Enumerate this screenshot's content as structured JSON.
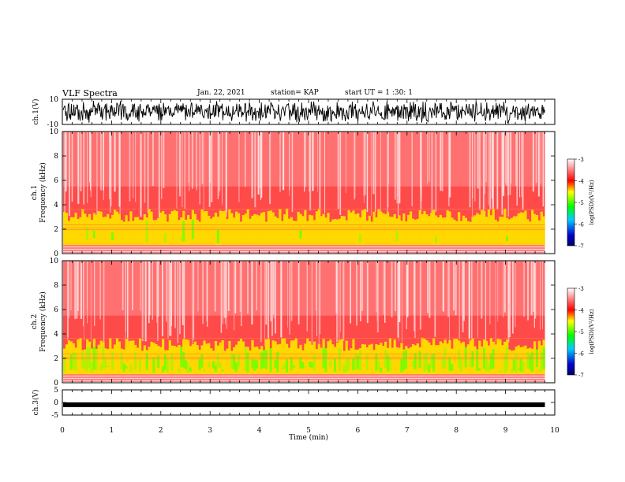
{
  "header": {
    "title": "VLF Spectra",
    "date": "Jan. 22, 2021",
    "station": "station= KAP",
    "start": "start  UT =   1 :30: 1"
  },
  "chart_data": [
    {
      "type": "line",
      "panel": "ch1-waveform",
      "ylabel": "ch.1(V)",
      "ylim": [
        -10,
        10
      ],
      "yticks": [
        "10",
        "-10"
      ],
      "xlim": [
        0,
        10
      ],
      "data_end_min": 9.8,
      "color": "#000000"
    },
    {
      "type": "heatmap",
      "panel": "ch1-spectrogram",
      "ylabel": "ch.1  Frequency (kHz)",
      "ylim": [
        0,
        10
      ],
      "yticks": [
        "0",
        "2",
        "4",
        "6",
        "8",
        "10"
      ],
      "xlim": [
        0,
        10
      ],
      "data_end_min": 9.8,
      "colorbar": {
        "label": "log(PSD)(V²/Hz)",
        "range": [
          -7,
          -3
        ],
        "ticks": [
          "-3",
          "-4",
          "-5",
          "-6",
          "-7"
        ]
      }
    },
    {
      "type": "heatmap",
      "panel": "ch2-spectrogram",
      "ylabel": "ch.2  Frequency (kHz)",
      "ylim": [
        0,
        10
      ],
      "yticks": [
        "0",
        "2",
        "4",
        "6",
        "8",
        "10"
      ],
      "xlim": [
        0,
        10
      ],
      "data_end_min": 9.8,
      "colorbar": {
        "label": "log(PSD)(V²/Hz)",
        "range": [
          -7,
          -3
        ],
        "ticks": [
          "-3",
          "-4",
          "-5",
          "-6",
          "-7"
        ]
      }
    },
    {
      "type": "line",
      "panel": "ch3-waveform",
      "ylabel": "ch.3(V)",
      "ylim": [
        -5,
        5
      ],
      "yticks": [
        "5",
        "0",
        "-5"
      ],
      "xlim": [
        0,
        10
      ],
      "data_end_min": 9.8,
      "level": -0.9,
      "color": "#000000"
    }
  ],
  "xaxis": {
    "label": "Time (min)",
    "ticks": [
      "0",
      "1",
      "2",
      "3",
      "4",
      "5",
      "6",
      "7",
      "8",
      "9",
      "10"
    ]
  },
  "colors": {
    "low": "#0000cc",
    "mid": "#00ff00",
    "high_mid": "#ffff00",
    "high": "#ff0000",
    "background": "#ffffff"
  }
}
